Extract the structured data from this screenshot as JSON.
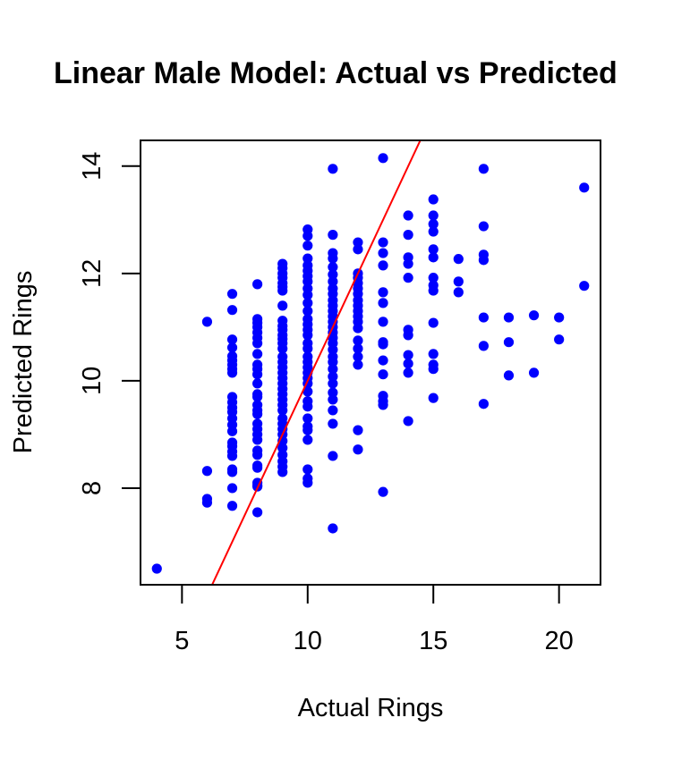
{
  "chart_data": {
    "type": "scatter",
    "title": "Linear Male Model: Actual vs Predicted",
    "xlabel": "Actual Rings",
    "ylabel": "Predicted Rings",
    "xlim": [
      3.35,
      21.65
    ],
    "ylim": [
      6.2,
      14.48
    ],
    "x_ticks": [
      5,
      10,
      15,
      20
    ],
    "y_ticks": [
      8,
      10,
      12,
      14
    ],
    "grid": false,
    "point_color": "#0000ff",
    "reference_line": {
      "intercept": 0,
      "slope": 1,
      "color": "#ff0000"
    },
    "series": [
      {
        "points": [
          [
            4,
            6.5
          ],
          [
            6,
            11.1
          ],
          [
            6,
            8.32
          ],
          [
            6,
            7.8
          ],
          [
            6,
            7.73
          ],
          [
            7,
            11.62
          ],
          [
            7,
            11.32
          ],
          [
            7,
            10.77
          ],
          [
            7,
            10.62
          ],
          [
            7,
            10.46
          ],
          [
            7,
            10.38
          ],
          [
            7,
            10.3
          ],
          [
            7,
            10.22
          ],
          [
            7,
            10.15
          ],
          [
            7,
            9.7
          ],
          [
            7,
            9.6
          ],
          [
            7,
            9.5
          ],
          [
            7,
            9.42
          ],
          [
            7,
            9.3
          ],
          [
            7,
            9.18
          ],
          [
            7,
            9.06
          ],
          [
            7,
            8.85
          ],
          [
            7,
            8.78
          ],
          [
            7,
            8.68
          ],
          [
            7,
            8.6
          ],
          [
            7,
            8.35
          ],
          [
            7,
            8.3
          ],
          [
            7,
            8.0
          ],
          [
            7,
            7.67
          ],
          [
            8,
            11.8
          ],
          [
            8,
            11.15
          ],
          [
            8,
            11.08
          ],
          [
            8,
            11.0
          ],
          [
            8,
            10.9
          ],
          [
            8,
            10.8
          ],
          [
            8,
            10.7
          ],
          [
            8,
            10.5
          ],
          [
            8,
            10.3
          ],
          [
            8,
            10.22
          ],
          [
            8,
            10.12
          ],
          [
            8,
            9.95
          ],
          [
            8,
            9.75
          ],
          [
            8,
            9.7
          ],
          [
            8,
            9.55
          ],
          [
            8,
            9.45
          ],
          [
            8,
            9.38
          ],
          [
            8,
            9.2
          ],
          [
            8,
            9.1
          ],
          [
            8,
            9.0
          ],
          [
            8,
            8.9
          ],
          [
            8,
            8.7
          ],
          [
            8,
            8.62
          ],
          [
            8,
            8.42
          ],
          [
            8,
            8.38
          ],
          [
            8,
            8.1
          ],
          [
            8,
            8.05
          ],
          [
            8,
            8.03
          ],
          [
            8,
            7.55
          ],
          [
            9,
            12.18
          ],
          [
            9,
            12.1
          ],
          [
            9,
            12.0
          ],
          [
            9,
            11.92
          ],
          [
            9,
            11.82
          ],
          [
            9,
            11.75
          ],
          [
            9,
            11.68
          ],
          [
            9,
            11.4
          ],
          [
            9,
            11.12
          ],
          [
            9,
            11.02
          ],
          [
            9,
            10.95
          ],
          [
            9,
            10.85
          ],
          [
            9,
            10.78
          ],
          [
            9,
            10.7
          ],
          [
            9,
            10.6
          ],
          [
            9,
            10.45
          ],
          [
            9,
            10.35
          ],
          [
            9,
            10.25
          ],
          [
            9,
            10.15
          ],
          [
            9,
            10.05
          ],
          [
            9,
            9.95
          ],
          [
            9,
            9.85
          ],
          [
            9,
            9.75
          ],
          [
            9,
            9.65
          ],
          [
            9,
            9.55
          ],
          [
            9,
            9.45
          ],
          [
            9,
            9.3
          ],
          [
            9,
            9.2
          ],
          [
            9,
            9.1
          ],
          [
            9,
            9.0
          ],
          [
            9,
            8.88
          ],
          [
            9,
            8.75
          ],
          [
            9,
            8.62
          ],
          [
            9,
            8.5
          ],
          [
            9,
            8.4
          ],
          [
            9,
            8.3
          ],
          [
            10,
            12.82
          ],
          [
            10,
            12.7
          ],
          [
            10,
            12.52
          ],
          [
            10,
            12.28
          ],
          [
            10,
            12.15
          ],
          [
            10,
            12.05
          ],
          [
            10,
            11.95
          ],
          [
            10,
            11.85
          ],
          [
            10,
            11.72
          ],
          [
            10,
            11.6
          ],
          [
            10,
            11.45
          ],
          [
            10,
            11.3
          ],
          [
            10,
            11.15
          ],
          [
            10,
            11.05
          ],
          [
            10,
            10.95
          ],
          [
            10,
            10.85
          ],
          [
            10,
            10.7
          ],
          [
            10,
            10.6
          ],
          [
            10,
            10.45
          ],
          [
            10,
            10.35
          ],
          [
            10,
            10.25
          ],
          [
            10,
            10.15
          ],
          [
            10,
            10.05
          ],
          [
            10,
            9.95
          ],
          [
            10,
            9.8
          ],
          [
            10,
            9.62
          ],
          [
            10,
            9.52
          ],
          [
            10,
            9.3
          ],
          [
            10,
            9.15
          ],
          [
            10,
            9.08
          ],
          [
            10,
            8.9
          ],
          [
            10,
            8.35
          ],
          [
            10,
            8.18
          ],
          [
            10,
            8.1
          ],
          [
            11,
            13.95
          ],
          [
            11,
            12.72
          ],
          [
            11,
            12.38
          ],
          [
            11,
            12.28
          ],
          [
            11,
            12.12
          ],
          [
            11,
            11.98
          ],
          [
            11,
            11.85
          ],
          [
            11,
            11.72
          ],
          [
            11,
            11.62
          ],
          [
            11,
            11.5
          ],
          [
            11,
            11.4
          ],
          [
            11,
            11.3
          ],
          [
            11,
            11.2
          ],
          [
            11,
            11.1
          ],
          [
            11,
            11.0
          ],
          [
            11,
            10.9
          ],
          [
            11,
            10.8
          ],
          [
            11,
            10.7
          ],
          [
            11,
            10.58
          ],
          [
            11,
            10.45
          ],
          [
            11,
            10.35
          ],
          [
            11,
            10.22
          ],
          [
            11,
            10.08
          ],
          [
            11,
            9.95
          ],
          [
            11,
            9.78
          ],
          [
            11,
            9.65
          ],
          [
            11,
            9.45
          ],
          [
            11,
            9.2
          ],
          [
            11,
            8.6
          ],
          [
            11,
            7.25
          ],
          [
            12,
            12.58
          ],
          [
            12,
            12.45
          ],
          [
            12,
            12.0
          ],
          [
            12,
            11.92
          ],
          [
            12,
            11.82
          ],
          [
            12,
            11.72
          ],
          [
            12,
            11.62
          ],
          [
            12,
            11.5
          ],
          [
            12,
            11.4
          ],
          [
            12,
            11.3
          ],
          [
            12,
            11.2
          ],
          [
            12,
            11.1
          ],
          [
            12,
            10.98
          ],
          [
            12,
            10.75
          ],
          [
            12,
            10.6
          ],
          [
            12,
            10.45
          ],
          [
            12,
            10.3
          ],
          [
            12,
            9.08
          ],
          [
            12,
            8.72
          ],
          [
            13,
            14.15
          ],
          [
            13,
            12.58
          ],
          [
            13,
            12.38
          ],
          [
            13,
            12.15
          ],
          [
            13,
            11.65
          ],
          [
            13,
            11.45
          ],
          [
            13,
            11.1
          ],
          [
            13,
            10.72
          ],
          [
            13,
            10.68
          ],
          [
            13,
            10.38
          ],
          [
            13,
            10.12
          ],
          [
            13,
            9.72
          ],
          [
            13,
            9.62
          ],
          [
            13,
            9.55
          ],
          [
            13,
            7.93
          ],
          [
            14,
            13.08
          ],
          [
            14,
            12.72
          ],
          [
            14,
            12.3
          ],
          [
            14,
            12.18
          ],
          [
            14,
            11.92
          ],
          [
            14,
            10.95
          ],
          [
            14,
            10.85
          ],
          [
            14,
            10.48
          ],
          [
            14,
            10.32
          ],
          [
            14,
            10.15
          ],
          [
            14,
            9.25
          ],
          [
            15,
            13.38
          ],
          [
            15,
            13.08
          ],
          [
            15,
            12.92
          ],
          [
            15,
            12.78
          ],
          [
            15,
            12.45
          ],
          [
            15,
            12.3
          ],
          [
            15,
            11.92
          ],
          [
            15,
            11.78
          ],
          [
            15,
            11.68
          ],
          [
            15,
            11.08
          ],
          [
            15,
            10.5
          ],
          [
            15,
            10.3
          ],
          [
            15,
            10.22
          ],
          [
            15,
            9.68
          ],
          [
            16,
            12.27
          ],
          [
            16,
            11.85
          ],
          [
            16,
            11.65
          ],
          [
            17,
            13.95
          ],
          [
            17,
            12.88
          ],
          [
            17,
            12.35
          ],
          [
            17,
            12.25
          ],
          [
            17,
            11.18
          ],
          [
            17,
            10.65
          ],
          [
            17,
            9.57
          ],
          [
            18,
            11.18
          ],
          [
            18,
            10.72
          ],
          [
            18,
            10.1
          ],
          [
            19,
            11.22
          ],
          [
            19,
            10.15
          ],
          [
            20,
            11.18
          ],
          [
            20,
            10.77
          ],
          [
            21,
            13.6
          ],
          [
            21,
            11.77
          ]
        ]
      }
    ]
  }
}
